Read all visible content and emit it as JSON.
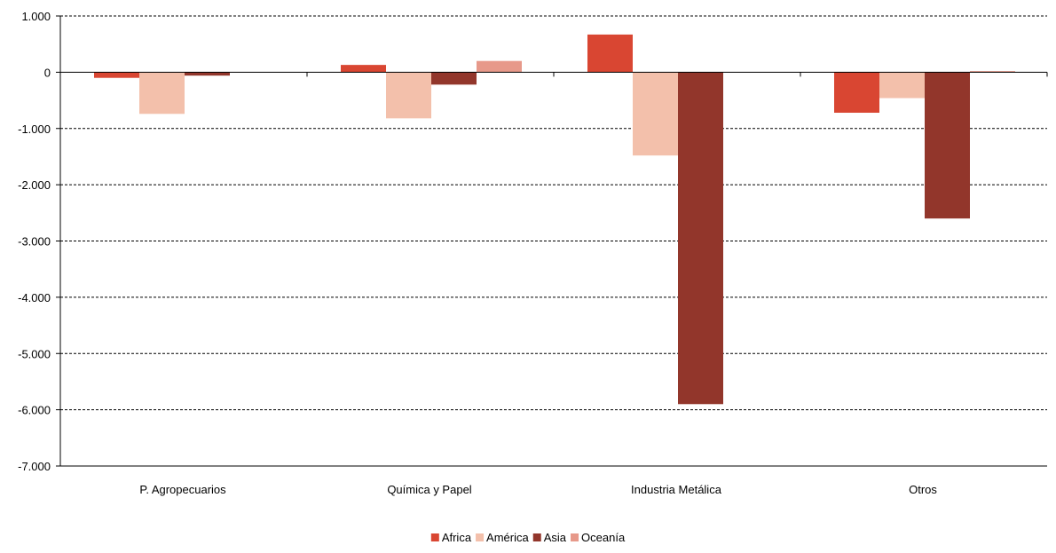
{
  "chart_data": {
    "type": "bar",
    "categories": [
      "P. Agropecuarios",
      "Química y Papel",
      "Industria Metálica",
      "Otros"
    ],
    "series": [
      {
        "name": "Africa",
        "color": "#d94632",
        "values": [
          -100,
          130,
          670,
          -720
        ]
      },
      {
        "name": "América",
        "color": "#f3c0ab",
        "values": [
          -740,
          -820,
          -1480,
          -460
        ]
      },
      {
        "name": "Asia",
        "color": "#92362b",
        "values": [
          -60,
          -220,
          -5900,
          -2600
        ]
      },
      {
        "name": "Oceanía",
        "color": "#e7998a",
        "values": [
          0,
          200,
          0,
          20
        ]
      }
    ],
    "y_ticks": [
      "1.000",
      "0",
      "-1.000",
      "-2.000",
      "-3.000",
      "-4.000",
      "-5.000",
      "-6.000",
      "-7.000"
    ],
    "ylim": [
      -7000,
      1000
    ],
    "grid": true,
    "gridlines": "dashed",
    "legend_position": "bottom-center"
  }
}
